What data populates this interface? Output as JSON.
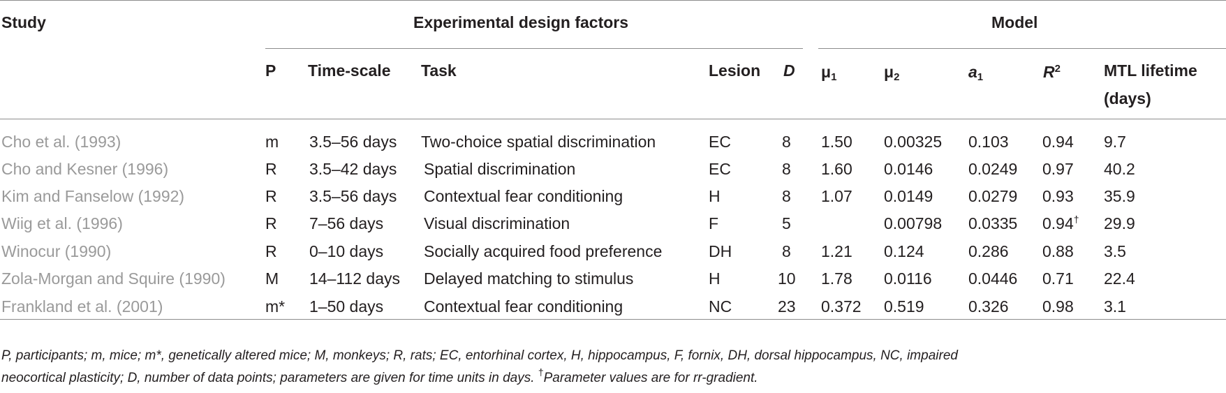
{
  "header": {
    "study": "Study",
    "group_design": "Experimental design factors",
    "group_model": "Model",
    "col_p": "P",
    "col_timescale": "Time-scale",
    "col_task": "Task",
    "col_lesion": "Lesion",
    "col_d": "D",
    "col_mu": "μ",
    "sub1": "1",
    "sub2": "2",
    "col_a": "a",
    "col_r": "R",
    "sup2": "2",
    "col_mtl_line1": "MTL lifetime",
    "col_mtl_line2": "(days)"
  },
  "rows": [
    {
      "study": "Cho et al. (1993)",
      "p": "m",
      "timescale": "3.5–56 days",
      "task": "Two-choice spatial discrimination",
      "lesion": "EC",
      "d": "8",
      "mu1": "1.50",
      "mu2": "0.00325",
      "a1": "0.103",
      "r2": "0.94",
      "mtl": "9.7"
    },
    {
      "study": "Cho and Kesner (1996)",
      "p": "R",
      "timescale": "3.5–42 days",
      "task": "Spatial discrimination",
      "lesion": "EC",
      "d": "8",
      "mu1": "1.60",
      "mu2": "0.0146",
      "a1": "0.0249",
      "r2": "0.97",
      "mtl": "40.2"
    },
    {
      "study": "Kim and Fanselow (1992)",
      "p": "R",
      "timescale": "3.5–56 days",
      "task": "Contextual fear conditioning",
      "lesion": "H",
      "d": "8",
      "mu1": "1.07",
      "mu2": "0.0149",
      "a1": "0.0279",
      "r2": "0.93",
      "mtl": "35.9"
    },
    {
      "study": "Wiig et al. (1996)",
      "p": "R",
      "timescale": "7–56 days",
      "task": "Visual discrimination",
      "lesion": "F",
      "d": "5",
      "mu1": "",
      "mu2": "0.00798",
      "a1": "0.0335",
      "r2": "0.94",
      "r2_mark": "†",
      "mtl": "29.9"
    },
    {
      "study": "Winocur (1990)",
      "p": "R",
      "timescale": "0–10 days",
      "task": "Socially acquired food preference",
      "lesion": "DH",
      "d": "8",
      "mu1": "1.21",
      "mu2": "0.124",
      "a1": "0.286",
      "r2": "0.88",
      "mtl": "3.5"
    },
    {
      "study": "Zola-Morgan and Squire (1990)",
      "p": "M",
      "timescale": "14–112 days",
      "task": "Delayed matching to stimulus",
      "lesion": "H",
      "d": "10",
      "mu1": "1.78",
      "mu2": "0.0116",
      "a1": "0.0446",
      "r2": "0.71",
      "mtl": "22.4"
    },
    {
      "study": "Frankland et al. (2001)",
      "p": "m*",
      "timescale": "1–50 days",
      "task": "Contextual fear conditioning",
      "lesion": "NC",
      "d": "23",
      "mu1": "0.372",
      "mu2": "0.519",
      "a1": "0.326",
      "r2": "0.98",
      "mtl": "3.1"
    }
  ],
  "footnote": {
    "line1": "P, participants; m, mice; m*, genetically altered mice; M, monkeys; R, rats; EC, entorhinal cortex, H, hippocampus, F, fornix, DH, dorsal hippocampus, NC, impaired",
    "line2_text": "neocortical plasticity; D, number of data points; parameters are given for time units in days. ",
    "line2_mark": "†",
    "line2_tail": "Parameter values are for rr-gradient."
  },
  "colors": {
    "rule": "#8c8c8c",
    "study_text": "#9a9a9a",
    "text": "#231f20"
  }
}
